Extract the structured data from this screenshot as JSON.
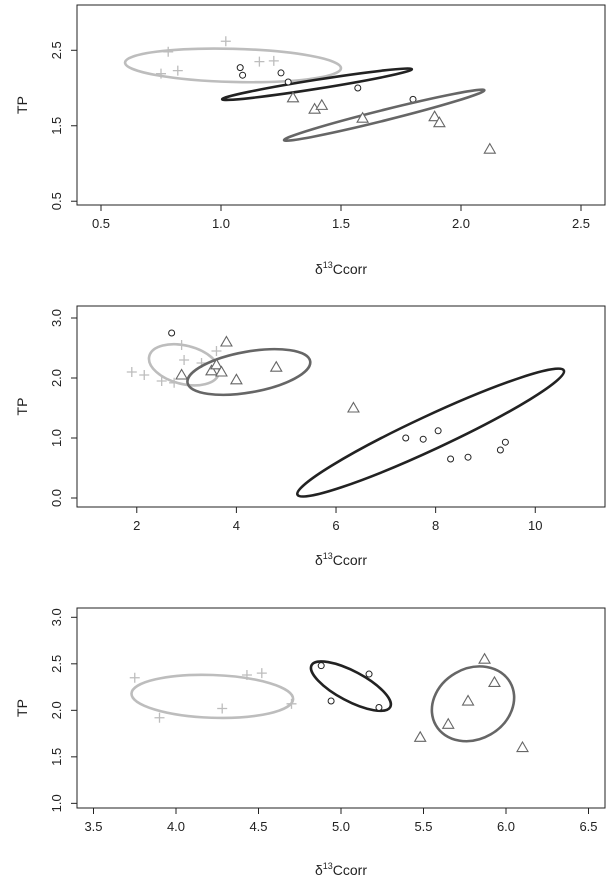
{
  "chart_data": [
    {
      "type": "scatter",
      "xlabel_prefix": "δ",
      "xlabel_sup": "13",
      "xlabel_main": "Ccorr",
      "ylabel": "TP",
      "xlim": [
        0.4,
        2.6
      ],
      "ylim": [
        0.45,
        3.1
      ],
      "xticks": [
        0.5,
        1.0,
        1.5,
        2.0,
        2.5
      ],
      "xtick_labels": [
        "0.5",
        "1.0",
        "1.5",
        "2.0",
        "2.5"
      ],
      "yticks": [
        0.5,
        1.5,
        2.5
      ],
      "ytick_labels": [
        "0.5",
        "1.5",
        "2.5"
      ],
      "grid": false,
      "series": [
        {
          "marker": "plus",
          "color": "#bdbdbd",
          "points": [
            [
              0.78,
              2.48
            ],
            [
              0.75,
              2.19
            ],
            [
              0.82,
              2.23
            ],
            [
              1.02,
              2.62
            ],
            [
              1.16,
              2.35
            ],
            [
              1.22,
              2.36
            ]
          ],
          "ellipse": {
            "cx": 1.05,
            "cy": 2.3,
            "rx": 0.45,
            "ry": 0.22,
            "angle_deg": -1.5
          }
        },
        {
          "marker": "circle",
          "color": "#222222",
          "points": [
            [
              1.08,
              2.27
            ],
            [
              1.09,
              2.17
            ],
            [
              1.25,
              2.2
            ],
            [
              1.28,
              2.08
            ],
            [
              1.57,
              2.0
            ],
            [
              1.8,
              1.85
            ]
          ],
          "ellipse": {
            "cx": 1.4,
            "cy": 2.05,
            "rx": 0.4,
            "ry": 0.06,
            "angle_deg": 9
          }
        },
        {
          "marker": "triangle",
          "color": "#666666",
          "points": [
            [
              1.3,
              1.87
            ],
            [
              1.39,
              1.72
            ],
            [
              1.42,
              1.77
            ],
            [
              1.59,
              1.6
            ],
            [
              1.89,
              1.62
            ],
            [
              1.91,
              1.54
            ],
            [
              2.12,
              1.19
            ]
          ],
          "ellipse": {
            "cx": 1.68,
            "cy": 1.64,
            "rx": 0.43,
            "ry": 0.07,
            "angle_deg": 14
          }
        }
      ]
    },
    {
      "type": "scatter",
      "xlabel_prefix": "δ",
      "xlabel_sup": "13",
      "xlabel_main": "Ccorr",
      "ylabel": "TP",
      "xlim": [
        0.8,
        11.4
      ],
      "ylim": [
        -0.15,
        3.2
      ],
      "xticks": [
        2,
        4,
        6,
        8,
        10
      ],
      "xtick_labels": [
        "2",
        "4",
        "6",
        "8",
        "10"
      ],
      "yticks": [
        0.0,
        1.0,
        2.0,
        3.0
      ],
      "ytick_labels": [
        "0.0",
        "1.0",
        "2.0",
        "3.0"
      ],
      "grid": false,
      "series": [
        {
          "marker": "plus",
          "color": "#bdbdbd",
          "points": [
            [
              1.9,
              2.1
            ],
            [
              2.15,
              2.05
            ],
            [
              2.5,
              1.95
            ],
            [
              2.75,
              1.92
            ],
            [
              2.9,
              2.55
            ],
            [
              2.95,
              2.3
            ],
            [
              3.3,
              2.25
            ],
            [
              3.6,
              2.45
            ]
          ],
          "ellipse": {
            "cx": 2.95,
            "cy": 2.22,
            "rx": 0.72,
            "ry": 0.32,
            "angle_deg": -14
          }
        },
        {
          "marker": "circle",
          "color": "#222222",
          "points": [
            [
              2.7,
              2.75
            ],
            [
              7.4,
              1.0
            ],
            [
              7.75,
              0.98
            ],
            [
              8.05,
              1.12
            ],
            [
              8.3,
              0.65
            ],
            [
              8.65,
              0.68
            ],
            [
              9.3,
              0.8
            ],
            [
              9.4,
              0.93
            ]
          ],
          "ellipse": {
            "cx": 7.9,
            "cy": 1.09,
            "rx": 2.95,
            "ry": 0.28,
            "angle_deg": 25
          }
        },
        {
          "marker": "triangle",
          "color": "#666666",
          "points": [
            [
              2.9,
              2.05
            ],
            [
              3.5,
              2.12
            ],
            [
              3.6,
              2.22
            ],
            [
              3.7,
              2.1
            ],
            [
              3.8,
              2.6
            ],
            [
              4.0,
              1.97
            ],
            [
              4.8,
              2.18
            ],
            [
              6.35,
              1.5
            ]
          ],
          "ellipse": {
            "cx": 4.25,
            "cy": 2.1,
            "rx": 1.25,
            "ry": 0.34,
            "angle_deg": 10
          }
        }
      ]
    },
    {
      "type": "scatter",
      "xlabel_prefix": "δ",
      "xlabel_sup": "13",
      "xlabel_main": "Ccorr",
      "ylabel": "TP",
      "xlim": [
        3.4,
        6.6
      ],
      "ylim": [
        0.95,
        3.1
      ],
      "xticks": [
        3.5,
        4.0,
        4.5,
        5.0,
        5.5,
        6.0,
        6.5
      ],
      "xtick_labels": [
        "3.5",
        "4.0",
        "4.5",
        "5.0",
        "5.5",
        "6.0",
        "6.5"
      ],
      "yticks": [
        1.0,
        1.5,
        2.0,
        2.5,
        3.0
      ],
      "ytick_labels": [
        "1.0",
        "1.5",
        "2.0",
        "2.5",
        "3.0"
      ],
      "grid": false,
      "series": [
        {
          "marker": "plus",
          "color": "#bdbdbd",
          "points": [
            [
              3.75,
              2.35
            ],
            [
              3.9,
              1.92
            ],
            [
              4.28,
              2.02
            ],
            [
              4.43,
              2.38
            ],
            [
              4.52,
              2.4
            ],
            [
              4.7,
              2.07
            ]
          ],
          "ellipse": {
            "cx": 4.22,
            "cy": 2.15,
            "rx": 0.49,
            "ry": 0.23,
            "angle_deg": -2
          }
        },
        {
          "marker": "circle",
          "color": "#222222",
          "points": [
            [
              4.88,
              2.48
            ],
            [
              4.94,
              2.1
            ],
            [
              5.17,
              2.39
            ],
            [
              5.23,
              2.03
            ]
          ],
          "ellipse": {
            "cx": 5.06,
            "cy": 2.26,
            "rx": 0.27,
            "ry": 0.16,
            "angle_deg": -28
          }
        },
        {
          "marker": "triangle",
          "color": "#666666",
          "points": [
            [
              5.48,
              1.71
            ],
            [
              5.65,
              1.85
            ],
            [
              5.77,
              2.1
            ],
            [
              5.87,
              2.55
            ],
            [
              5.93,
              2.3
            ],
            [
              6.1,
              1.6
            ]
          ],
          "ellipse": {
            "cx": 5.8,
            "cy": 2.07,
            "rx": 0.26,
            "ry": 0.38,
            "angle_deg": 30
          }
        }
      ]
    }
  ]
}
